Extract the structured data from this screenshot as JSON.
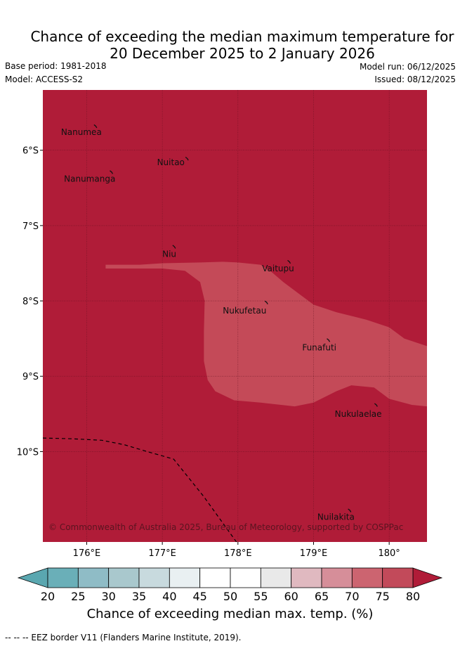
{
  "title_line1": "Chance of exceeding the median maximum temperature for",
  "title_line2": "20 December 2025 to 2 January 2026",
  "base_period": "Base period: 1981-2018",
  "model": "Model: ACCESS-S2",
  "model_run": "Model run: 06/12/2025",
  "issued": "Issued: 08/12/2025",
  "colors": {
    "class_75_80_plus": "#b01c38",
    "class_70_75": "#c44a58",
    "eez_border": "#000000",
    "grid": "#5a0f1c"
  },
  "map": {
    "lon_range": [
      175.42,
      180.5
    ],
    "lat_range": [
      -11.2,
      -5.2
    ],
    "lon_ticks": [
      {
        "value": 176,
        "label": "176°E"
      },
      {
        "value": 177,
        "label": "177°E"
      },
      {
        "value": 178,
        "label": "178°E"
      },
      {
        "value": 179,
        "label": "179°E"
      },
      {
        "value": 180,
        "label": "180°"
      }
    ],
    "lat_ticks": [
      {
        "value": -6,
        "label": "6°S"
      },
      {
        "value": -7,
        "label": "7°S"
      },
      {
        "value": -8,
        "label": "8°S"
      },
      {
        "value": -9,
        "label": "9°S"
      },
      {
        "value": -10,
        "label": "10°S"
      }
    ],
    "background_class": "75-80%",
    "region_70_75": [
      [
        176.25,
        -7.52
      ],
      [
        176.7,
        -7.52
      ],
      [
        177.0,
        -7.5
      ],
      [
        177.5,
        -7.49
      ],
      [
        177.8,
        -7.48
      ],
      [
        178.0,
        -7.49
      ],
      [
        178.3,
        -7.52
      ],
      [
        178.45,
        -7.62
      ],
      [
        178.6,
        -7.75
      ],
      [
        178.8,
        -7.9
      ],
      [
        179.0,
        -8.05
      ],
      [
        179.3,
        -8.15
      ],
      [
        179.7,
        -8.25
      ],
      [
        180.0,
        -8.35
      ],
      [
        180.2,
        -8.5
      ],
      [
        180.5,
        -8.6
      ],
      [
        180.5,
        -9.4
      ],
      [
        180.3,
        -9.38
      ],
      [
        180.0,
        -9.3
      ],
      [
        179.8,
        -9.15
      ],
      [
        179.5,
        -9.12
      ],
      [
        179.3,
        -9.2
      ],
      [
        179.0,
        -9.35
      ],
      [
        178.75,
        -9.4
      ],
      [
        178.3,
        -9.35
      ],
      [
        177.95,
        -9.32
      ],
      [
        177.7,
        -9.2
      ],
      [
        177.6,
        -9.05
      ],
      [
        177.55,
        -8.8
      ],
      [
        177.55,
        -8.4
      ],
      [
        177.56,
        -8.0
      ],
      [
        177.5,
        -7.75
      ],
      [
        177.3,
        -7.6
      ],
      [
        177.0,
        -7.57
      ],
      [
        176.6,
        -7.57
      ],
      [
        176.25,
        -7.57
      ]
    ],
    "places": [
      {
        "name": "Nanumea",
        "lon": 176.12,
        "lat": -5.68,
        "label_lon": 175.66,
        "label_lat": -5.76
      },
      {
        "name": "Nuitao",
        "lon": 177.33,
        "lat": -6.11,
        "label_lon": 176.93,
        "label_lat": -6.16
      },
      {
        "name": "Nanumanga",
        "lon": 176.33,
        "lat": -6.29,
        "label_lon": 175.7,
        "label_lat": -6.38
      },
      {
        "name": "Niu",
        "lon": 177.16,
        "lat": -7.28,
        "label_lon": 177.0,
        "label_lat": -7.38
      },
      {
        "name": "Vaitupu",
        "lon": 178.68,
        "lat": -7.48,
        "label_lon": 178.32,
        "label_lat": -7.57
      },
      {
        "name": "Nukufetau",
        "lon": 178.38,
        "lat": -8.02,
        "label_lon": 177.8,
        "label_lat": -8.13
      },
      {
        "name": "Funafuti",
        "lon": 179.2,
        "lat": -8.52,
        "label_lon": 178.85,
        "label_lat": -8.62
      },
      {
        "name": "Nukulaelae",
        "lon": 179.83,
        "lat": -9.38,
        "label_lon": 179.28,
        "label_lat": -9.5
      },
      {
        "name": "Nuilakita",
        "lon": 179.48,
        "lat": -10.78,
        "label_lon": 179.05,
        "label_lat": -10.87
      }
    ],
    "eez_border": [
      [
        175.42,
        -9.82
      ],
      [
        175.8,
        -9.83
      ],
      [
        176.2,
        -9.85
      ],
      [
        176.5,
        -9.91
      ],
      [
        176.8,
        -10.0
      ],
      [
        177.15,
        -10.1
      ],
      [
        177.55,
        -10.6
      ],
      [
        177.98,
        -11.2
      ]
    ],
    "copyright": "© Commonwealth of Australia 2025, Bureau of Meteorology, supported by COSPPac"
  },
  "colorbar": {
    "ticks": [
      "20",
      "25",
      "30",
      "35",
      "40",
      "45",
      "50",
      "55",
      "60",
      "65",
      "70",
      "75",
      "80"
    ],
    "colors": [
      "#6aafb8",
      "#8fbcc6",
      "#a9c8cd",
      "#c8dade",
      "#e9f0f2",
      "#ffffff",
      "#ffffff",
      "#e9e9e9",
      "#e0b9c0",
      "#d68e99",
      "#cc6470",
      "#c24a5a"
    ],
    "under_color": "#5aa7b0",
    "over_color": "#b01c38",
    "label": "Chance of exceeding median max. temp. (%)"
  },
  "footnote": "--  --  -- EEZ border V11 (Flanders Marine Institute, 2019)."
}
